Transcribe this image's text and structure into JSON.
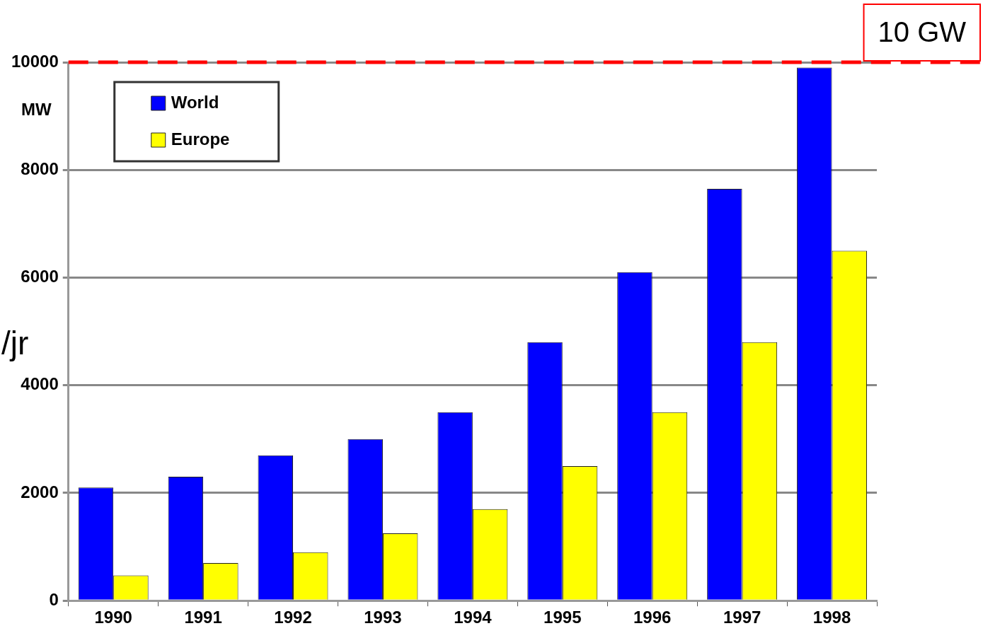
{
  "chart_data": {
    "type": "bar",
    "ylabel": "MW",
    "categories": [
      "1990",
      "1991",
      "1992",
      "1993",
      "1994",
      "1995",
      "1996",
      "1997",
      "1998"
    ],
    "series": [
      {
        "name": "World",
        "color": "#0000ff",
        "values": [
          2100,
          2300,
          2700,
          3000,
          3500,
          4800,
          6100,
          7650,
          9900
        ]
      },
      {
        "name": "Europe",
        "color": "#ffff00",
        "values": [
          470,
          700,
          900,
          1250,
          1700,
          2500,
          3500,
          4800,
          6500
        ]
      }
    ],
    "ylim": [
      0,
      10000
    ],
    "yticks": [
      0,
      2000,
      4000,
      6000,
      8000,
      10000
    ],
    "grid": "y",
    "legend": "top left",
    "ref_lines": [
      {
        "axis": "y",
        "value": 10000,
        "label": "10 GW",
        "color": "#ff0000",
        "line_style": "dashed"
      }
    ],
    "annotations": [
      "/jr"
    ]
  }
}
